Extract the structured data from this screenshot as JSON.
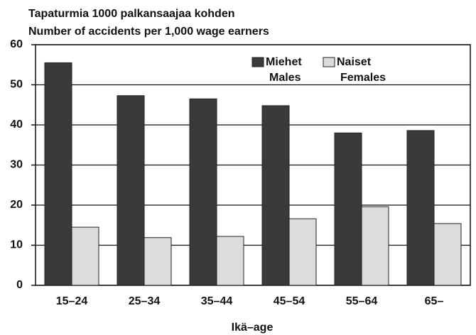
{
  "chart_data": {
    "type": "bar",
    "title": "Tapaturmia 1000 palkansaajaa kohden",
    "subtitle": "Number of accidents per 1,000 wage earners",
    "x_label": "Ikä–age",
    "categories": [
      "15–24",
      "25–34",
      "35–44",
      "45–54",
      "55–64",
      "65–"
    ],
    "series": [
      {
        "name": "Miehet",
        "name_en": "Males",
        "color": "#3a3a3a",
        "values": [
          55.5,
          47.3,
          46.5,
          44.8,
          38,
          38.6
        ]
      },
      {
        "name": "Naiset",
        "name_en": "Females",
        "color": "#dcdcdc",
        "values": [
          14.5,
          11.9,
          12.2,
          16.6,
          19.6,
          15.4
        ]
      }
    ],
    "ylim": [
      0,
      60
    ],
    "yticks": [
      0,
      10,
      20,
      30,
      40,
      50,
      60
    ],
    "grid": true
  }
}
